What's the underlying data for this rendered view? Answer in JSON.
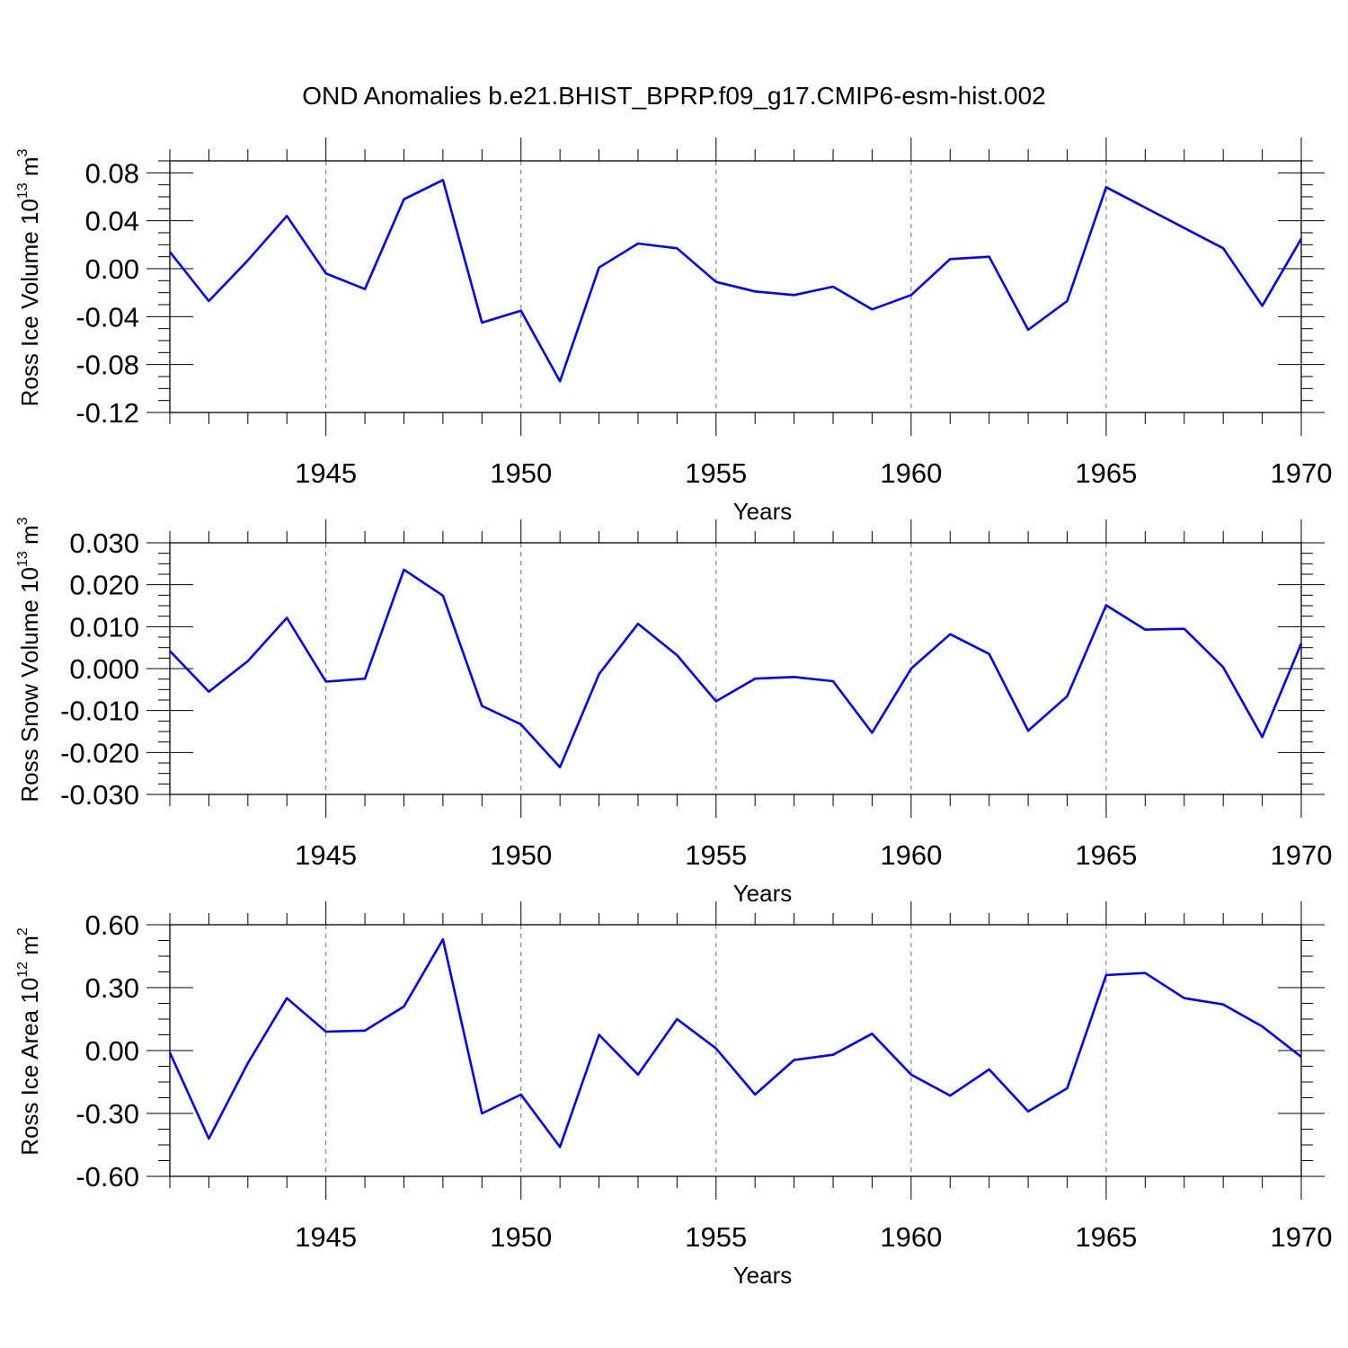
{
  "title": "OND Anomalies b.e21.BHIST_BPRP.f09_g17.CMIP6-esm-hist.002",
  "chart_data": [
    {
      "type": "line",
      "ylabel": "Ross Ice Volume 10",
      "ylabel_exp": "13",
      "ylabel_unit": " m",
      "ylabel_unit_exp": "3",
      "xlabel": "Years",
      "xlim": [
        1941,
        1970
      ],
      "ylim": [
        -0.12,
        0.09
      ],
      "yticks": [
        "0.08",
        "0.04",
        "0.00",
        "-0.04",
        "-0.08",
        "-0.12"
      ],
      "xticks": [
        "1945",
        "1950",
        "1955",
        "1960",
        "1965",
        "1970"
      ],
      "line_color": "#0000ff",
      "grid": "vertical dashed at major x ticks",
      "x": [
        1941,
        1942,
        1943,
        1944,
        1945,
        1946,
        1947,
        1948,
        1949,
        1950,
        1951,
        1952,
        1953,
        1954,
        1955,
        1956,
        1957,
        1958,
        1959,
        1960,
        1961,
        1962,
        1963,
        1964,
        1965,
        1966,
        1967,
        1968,
        1969,
        1970
      ],
      "values": [
        0.014,
        -0.027,
        0.007,
        0.044,
        -0.004,
        -0.017,
        0.058,
        0.074,
        -0.045,
        -0.035,
        -0.094,
        0.001,
        0.021,
        0.017,
        -0.011,
        -0.019,
        -0.022,
        -0.015,
        -0.034,
        -0.022,
        0.008,
        0.01,
        -0.051,
        -0.027,
        0.068,
        0.051,
        0.034,
        0.017,
        -0.031,
        0.025
      ]
    },
    {
      "type": "line",
      "ylabel": "Ross Snow Volume 10",
      "ylabel_exp": "13",
      "ylabel_unit": " m",
      "ylabel_unit_exp": "3",
      "xlabel": "Years",
      "xlim": [
        1941,
        1970
      ],
      "ylim": [
        -0.03,
        0.03
      ],
      "yticks": [
        "0.030",
        "0.020",
        "0.010",
        "0.000",
        "-0.010",
        "-0.020",
        "-0.030"
      ],
      "xticks": [
        "1945",
        "1950",
        "1955",
        "1960",
        "1965",
        "1970"
      ],
      "line_color": "#0000ff",
      "grid": "vertical dashed at major x ticks",
      "x": [
        1941,
        1942,
        1943,
        1944,
        1945,
        1946,
        1947,
        1948,
        1949,
        1950,
        1951,
        1952,
        1953,
        1954,
        1955,
        1956,
        1957,
        1958,
        1959,
        1960,
        1961,
        1962,
        1963,
        1964,
        1965,
        1966,
        1967,
        1968,
        1969,
        1970
      ],
      "values": [
        0.0042,
        -0.0055,
        0.0018,
        0.0121,
        -0.0031,
        -0.0024,
        0.0236,
        0.0174,
        -0.0089,
        -0.0133,
        -0.0235,
        -0.0013,
        0.0107,
        0.0032,
        -0.0078,
        -0.0024,
        -0.002,
        -0.003,
        -0.0153,
        0.0,
        0.0082,
        0.0035,
        -0.0148,
        -0.0066,
        0.0151,
        0.0093,
        0.0095,
        0.0003,
        -0.0163,
        0.006
      ]
    },
    {
      "type": "line",
      "ylabel": "Ross Ice Area 10",
      "ylabel_exp": "12",
      "ylabel_unit": " m",
      "ylabel_unit_exp": "2",
      "xlabel": "Years",
      "xlim": [
        1941,
        1970
      ],
      "ylim": [
        -0.6,
        0.6
      ],
      "yticks": [
        "0.60",
        "0.30",
        "0.00",
        "-0.30",
        "-0.60"
      ],
      "xticks": [
        "1945",
        "1950",
        "1955",
        "1960",
        "1965",
        "1970"
      ],
      "line_color": "#0000ff",
      "grid": "vertical dashed at major x ticks",
      "x": [
        1941,
        1942,
        1943,
        1944,
        1945,
        1946,
        1947,
        1948,
        1949,
        1950,
        1951,
        1952,
        1953,
        1954,
        1955,
        1956,
        1957,
        1958,
        1959,
        1960,
        1961,
        1962,
        1963,
        1964,
        1965,
        1966,
        1967,
        1968,
        1969,
        1970
      ],
      "values": [
        -0.01,
        -0.42,
        -0.06,
        0.25,
        0.09,
        0.095,
        0.21,
        0.53,
        -0.3,
        -0.21,
        -0.46,
        0.075,
        -0.115,
        0.15,
        0.01,
        -0.21,
        -0.045,
        -0.02,
        0.08,
        -0.115,
        -0.215,
        -0.09,
        -0.29,
        -0.18,
        0.36,
        0.37,
        0.25,
        0.22,
        0.115,
        -0.03
      ]
    }
  ]
}
